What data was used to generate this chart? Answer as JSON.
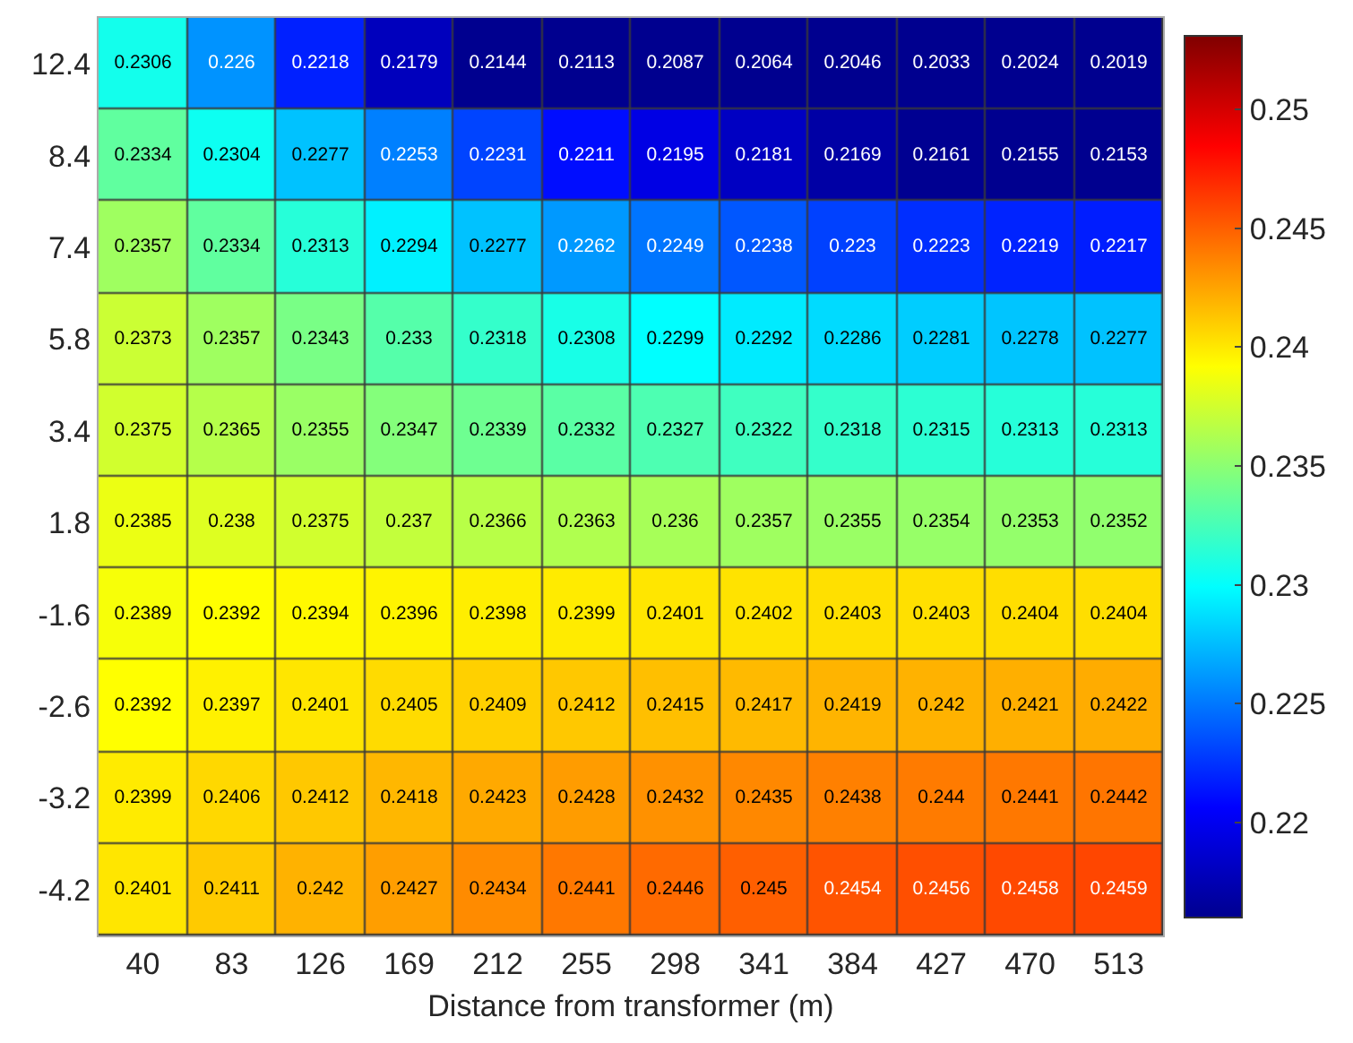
{
  "chart_data": {
    "type": "heatmap",
    "xlabel": "Distance from transformer (m)",
    "categories": [
      "40",
      "83",
      "126",
      "169",
      "212",
      "255",
      "298",
      "341",
      "384",
      "427",
      "470",
      "513"
    ],
    "y_categories": [
      "12.4",
      "8.4",
      "7.4",
      "5.8",
      "3.4",
      "1.8",
      "-1.6",
      "-2.6",
      "-3.2",
      "-4.2"
    ],
    "cells": [
      [
        0.2306,
        0.226,
        0.2218,
        0.2179,
        0.2144,
        0.2113,
        0.2087,
        0.2064,
        0.2046,
        0.2033,
        0.2024,
        0.2019
      ],
      [
        0.2334,
        0.2304,
        0.2277,
        0.2253,
        0.2231,
        0.2211,
        0.2195,
        0.2181,
        0.2169,
        0.2161,
        0.2155,
        0.2153
      ],
      [
        0.2357,
        0.2334,
        0.2313,
        0.2294,
        0.2277,
        0.2262,
        0.2249,
        0.2238,
        0.223,
        0.2223,
        0.2219,
        0.2217
      ],
      [
        0.2373,
        0.2357,
        0.2343,
        0.233,
        0.2318,
        0.2308,
        0.2299,
        0.2292,
        0.2286,
        0.2281,
        0.2278,
        0.2277
      ],
      [
        0.2375,
        0.2365,
        0.2355,
        0.2347,
        0.2339,
        0.2332,
        0.2327,
        0.2322,
        0.2318,
        0.2315,
        0.2313,
        0.2313
      ],
      [
        0.2385,
        0.238,
        0.2375,
        0.237,
        0.2366,
        0.2363,
        0.236,
        0.2357,
        0.2355,
        0.2354,
        0.2353,
        0.2352
      ],
      [
        0.2389,
        0.2392,
        0.2394,
        0.2396,
        0.2398,
        0.2399,
        0.2401,
        0.2402,
        0.2403,
        0.2403,
        0.2404,
        0.2404
      ],
      [
        0.2392,
        0.2397,
        0.2401,
        0.2405,
        0.2409,
        0.2412,
        0.2415,
        0.2417,
        0.2419,
        0.242,
        0.2421,
        0.2422
      ],
      [
        0.2399,
        0.2406,
        0.2412,
        0.2418,
        0.2423,
        0.2428,
        0.2432,
        0.2435,
        0.2438,
        0.244,
        0.2441,
        0.2442
      ],
      [
        0.2401,
        0.2411,
        0.242,
        0.2427,
        0.2434,
        0.2441,
        0.2446,
        0.245,
        0.2454,
        0.2456,
        0.2458,
        0.2459
      ]
    ],
    "clim": [
      0.216,
      0.2531
    ],
    "cticks": [
      0.22,
      0.225,
      0.23,
      0.235,
      0.24,
      0.245,
      0.25
    ],
    "data_labels": true
  }
}
